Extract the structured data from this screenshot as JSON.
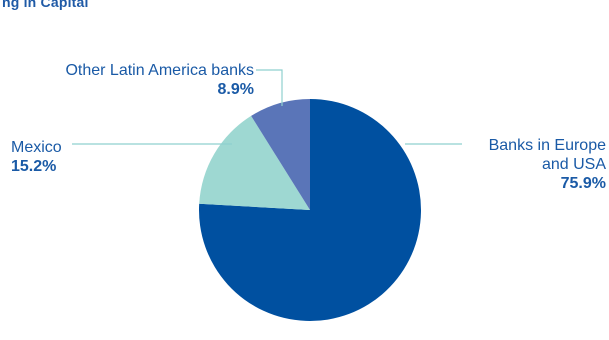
{
  "header": {
    "partial_title": "ng in Capital"
  },
  "colors": {
    "label_text": "#1a5aa6",
    "leader_line": "#8fd0cf"
  },
  "chart_data": {
    "type": "pie",
    "title": "",
    "slices": [
      {
        "label_line1": "Banks in Europe",
        "label_line2": "and USA",
        "value": 75.9,
        "value_label": "75.9%",
        "color": "#0050a0"
      },
      {
        "label_line1": "Mexico",
        "value": 15.2,
        "value_label": "15.2%",
        "color": "#9ed8d2"
      },
      {
        "label_line1": "Other Latin America banks",
        "value": 8.9,
        "value_label": "8.9%",
        "color": "#5a75b8"
      }
    ]
  }
}
